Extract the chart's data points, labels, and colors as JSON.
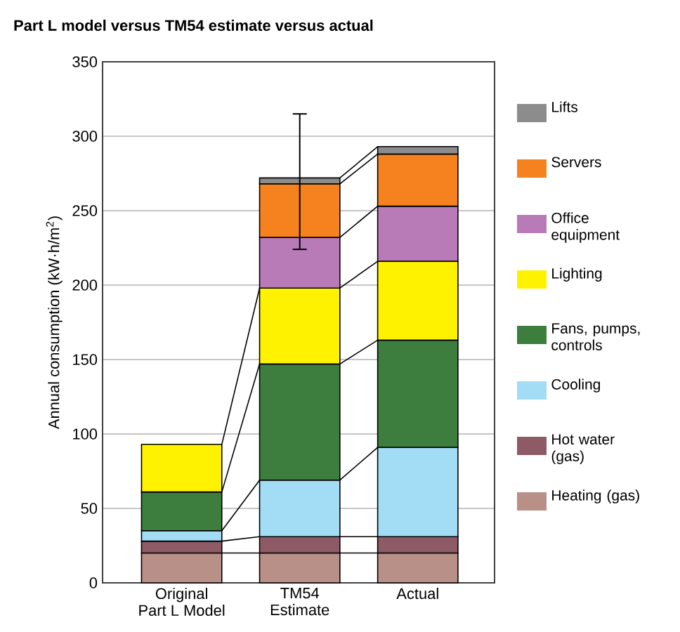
{
  "chart_data": {
    "type": "bar",
    "stacked": true,
    "title": "Part L model versus TM54 estimate versus actual",
    "ylabel": "Annual consumption (kW·h/m$^{2}$)",
    "categories": [
      "Original\nPart L Model",
      "TM54\nEstimate",
      "Actual"
    ],
    "series": [
      {
        "name": "Heating (gas)",
        "color": "#b89087",
        "values": [
          20,
          20,
          20
        ]
      },
      {
        "name": "Hot water (gas)",
        "color": "#8e5a66",
        "values": [
          8,
          11,
          11
        ]
      },
      {
        "name": "Cooling",
        "color": "#a3dcf5",
        "values": [
          7,
          38,
          60
        ]
      },
      {
        "name": "Fans, pumps, controls",
        "color": "#3d7d3d",
        "values": [
          26,
          78,
          72
        ]
      },
      {
        "name": "Lighting",
        "color": "#fff200",
        "values": [
          32,
          51,
          53
        ]
      },
      {
        "name": "Office equipment",
        "color": "#b87bb8",
        "values": [
          null,
          34,
          37
        ]
      },
      {
        "name": "Servers",
        "color": "#f5821f",
        "values": [
          null,
          36,
          35
        ]
      },
      {
        "name": "Lifts",
        "color": "#8c8c8c",
        "values": [
          null,
          4,
          5
        ],
        "errors": [
          null,
          [
            224,
            315
          ],
          null
        ]
      }
    ],
    "ylim": [
      0,
      350
    ],
    "yticks": [
      0,
      50,
      100,
      150,
      200,
      250,
      300,
      350
    ],
    "grid": "y",
    "legend": "right"
  }
}
